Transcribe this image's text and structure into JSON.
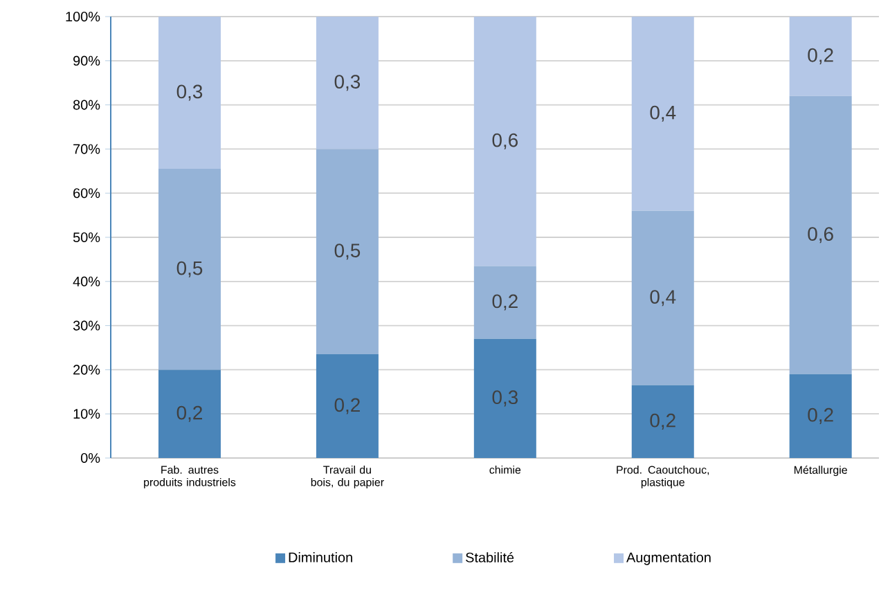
{
  "chart_data": {
    "type": "bar",
    "stacked": true,
    "categories": [
      "Fab. autres produits industriels",
      "Travail du bois, du papier",
      "chimie",
      "Prod. Caoutchouc, plastique",
      "Métallurgie"
    ],
    "series": [
      {
        "name": "Diminution",
        "color": "#4a85b9",
        "values": [
          0.2,
          0.235,
          0.27,
          0.165,
          0.19
        ],
        "value_labels": [
          "0,2",
          "0,2",
          "0,3",
          "0,2",
          "0,2"
        ]
      },
      {
        "name": "Stabilité",
        "color": "#95b3d7",
        "values": [
          0.455,
          0.465,
          0.165,
          0.395,
          0.63
        ],
        "value_labels": [
          "0,5",
          "0,5",
          "0,2",
          "0,4",
          "0,6"
        ]
      },
      {
        "name": "Augmentation",
        "color": "#b4c7e7",
        "values": [
          0.345,
          0.3,
          0.565,
          0.44,
          0.18
        ],
        "value_labels": [
          "0,3",
          "0,3",
          "0,6",
          "0,4",
          "0,2"
        ]
      }
    ],
    "ylim": [
      0,
      1
    ],
    "yticks": [
      {
        "value": 0,
        "label": "0%"
      },
      {
        "value": 0.1,
        "label": "10%"
      },
      {
        "value": 0.2,
        "label": "20%"
      },
      {
        "value": 0.3,
        "label": "30%"
      },
      {
        "value": 0.4,
        "label": "40%"
      },
      {
        "value": 0.5,
        "label": "50%"
      },
      {
        "value": 0.6,
        "label": "60%"
      },
      {
        "value": 0.7,
        "label": "70%"
      },
      {
        "value": 0.8,
        "label": "80%"
      },
      {
        "value": 0.9,
        "label": "90%"
      },
      {
        "value": 1,
        "label": "100%"
      }
    ],
    "grid": "y",
    "legend": "bottom"
  }
}
